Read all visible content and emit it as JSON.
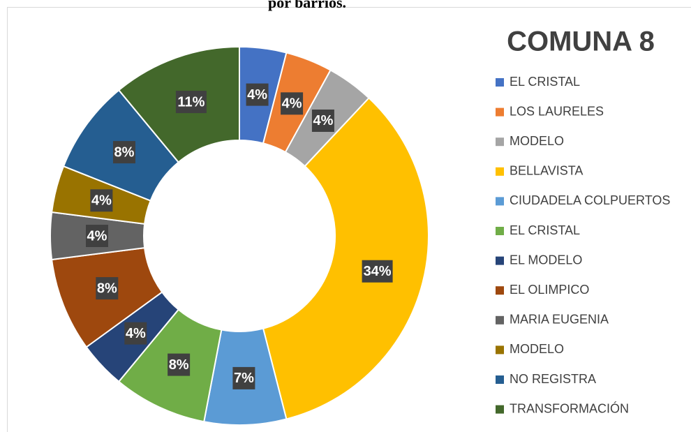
{
  "heading": "por barrios.",
  "chart_data": {
    "type": "donut",
    "title": "COMUNA 8",
    "categories": [
      "EL CRISTAL",
      "LOS LAURELES",
      "MODELO",
      "BELLAVISTA",
      "CIUDADELA COLPUERTOS",
      "EL CRISTAL",
      "EL MODELO",
      "EL OLIMPICO",
      "MARIA EUGENIA",
      "MODELO",
      "NO REGISTRA",
      "TRANSFORMACIÓN"
    ],
    "values": [
      4,
      4,
      4,
      34,
      7,
      8,
      4,
      8,
      4,
      4,
      8,
      11
    ],
    "value_labels": [
      "4%",
      "4%",
      "4%",
      "34%",
      "7%",
      "8%",
      "4%",
      "8%",
      "4%",
      "4%",
      "8%",
      "11%"
    ],
    "colors": [
      "#4472c4",
      "#ed7d31",
      "#a5a5a5",
      "#ffc000",
      "#5b9bd5",
      "#70ad47",
      "#264478",
      "#9e480e",
      "#636363",
      "#997300",
      "#255e91",
      "#43682b"
    ],
    "legend": "right"
  }
}
